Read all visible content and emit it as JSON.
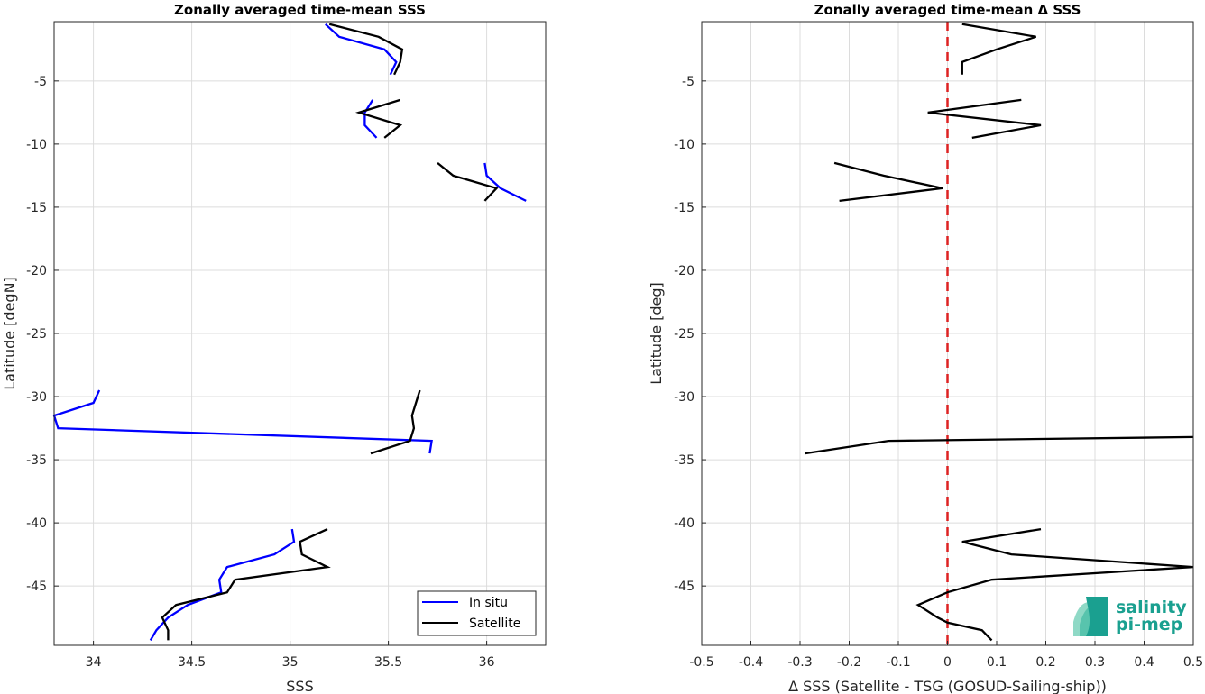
{
  "chart_data": [
    {
      "type": "line",
      "title": "Zonally averaged time-mean SSS",
      "xlabel": "SSS",
      "ylabel": "Latitude [degN]",
      "xlim": [
        33.8,
        36.3
      ],
      "ylim": [
        -49.7,
        -0.3
      ],
      "xticks": [
        34,
        34.5,
        35,
        35.5,
        36
      ],
      "xtick_labels": [
        "34",
        "34.5",
        "35",
        "35.5",
        "36"
      ],
      "yticks": [
        -5,
        -10,
        -15,
        -20,
        -25,
        -30,
        -35,
        -40,
        -45
      ],
      "ytick_labels": [
        "-5",
        "-10",
        "-15",
        "-20",
        "-25",
        "-30",
        "-35",
        "-40",
        "-45"
      ],
      "grid": true,
      "legend": {
        "placement": "bottom-right",
        "entries": [
          {
            "label": "In situ",
            "color": "#0000ff"
          },
          {
            "label": "Satellite",
            "color": "#000000"
          }
        ]
      },
      "series": [
        {
          "name": "In situ",
          "color": "#0000ff",
          "segments": [
            [
              [
                35.18,
                -0.5
              ],
              [
                35.25,
                -1.5
              ],
              [
                35.48,
                -2.5
              ],
              [
                35.54,
                -3.5
              ],
              [
                35.51,
                -4.5
              ]
            ],
            [
              [
                35.42,
                -6.5
              ],
              [
                35.38,
                -7.5
              ],
              [
                35.38,
                -8.5
              ],
              [
                35.44,
                -9.5
              ]
            ],
            [
              [
                35.99,
                -11.5
              ],
              [
                36.0,
                -12.5
              ],
              [
                36.07,
                -13.5
              ],
              [
                36.2,
                -14.5
              ]
            ],
            [
              [
                34.03,
                -29.5
              ],
              [
                34.0,
                -30.5
              ],
              [
                33.8,
                -31.5
              ],
              [
                33.82,
                -32.5
              ],
              [
                35.72,
                -33.5
              ],
              [
                35.71,
                -34.5
              ]
            ],
            [
              [
                35.01,
                -40.5
              ],
              [
                35.02,
                -41.5
              ],
              [
                34.92,
                -42.5
              ],
              [
                34.68,
                -43.5
              ],
              [
                34.64,
                -44.5
              ],
              [
                34.65,
                -45.5
              ],
              [
                34.48,
                -46.5
              ],
              [
                34.38,
                -47.5
              ],
              [
                34.32,
                -48.5
              ],
              [
                34.29,
                -49.3
              ]
            ]
          ]
        },
        {
          "name": "Satellite",
          "color": "#000000",
          "segments": [
            [
              [
                35.2,
                -0.5
              ],
              [
                35.45,
                -1.5
              ],
              [
                35.57,
                -2.5
              ],
              [
                35.56,
                -3.5
              ],
              [
                35.53,
                -4.5
              ]
            ],
            [
              [
                35.56,
                -6.5
              ],
              [
                35.35,
                -7.5
              ],
              [
                35.56,
                -8.5
              ],
              [
                35.48,
                -9.5
              ]
            ],
            [
              [
                35.75,
                -11.5
              ],
              [
                35.83,
                -12.5
              ],
              [
                36.05,
                -13.5
              ],
              [
                35.99,
                -14.5
              ]
            ],
            [
              [
                35.66,
                -29.5
              ],
              [
                35.62,
                -31.5
              ],
              [
                35.63,
                -32.5
              ],
              [
                35.61,
                -33.5
              ],
              [
                35.41,
                -34.5
              ]
            ],
            [
              [
                35.19,
                -40.5
              ],
              [
                35.05,
                -41.5
              ],
              [
                35.06,
                -42.5
              ],
              [
                35.19,
                -43.5
              ],
              [
                34.72,
                -44.5
              ],
              [
                34.68,
                -45.5
              ],
              [
                34.42,
                -46.5
              ],
              [
                34.35,
                -47.5
              ],
              [
                34.38,
                -48.5
              ],
              [
                34.38,
                -49.3
              ]
            ]
          ]
        }
      ]
    },
    {
      "type": "line",
      "title": "Zonally averaged time-mean Δ SSS",
      "xlabel": "Δ SSS (Satellite - TSG (GOSUD-Sailing-ship))",
      "ylabel": "Latitude [deg]",
      "xlim": [
        -0.5,
        0.5
      ],
      "ylim": [
        -49.7,
        -0.3
      ],
      "xticks": [
        -0.5,
        -0.4,
        -0.3,
        -0.2,
        -0.1,
        0,
        0.1,
        0.2,
        0.3,
        0.4,
        0.5
      ],
      "xtick_labels": [
        "-0.5",
        "-0.4",
        "-0.3",
        "-0.2",
        "-0.1",
        "0",
        "0.1",
        "0.2",
        "0.3",
        "0.4",
        "0.5"
      ],
      "yticks": [
        -5,
        -10,
        -15,
        -20,
        -25,
        -30,
        -35,
        -40,
        -45
      ],
      "ytick_labels": [
        "-5",
        "-10",
        "-15",
        "-20",
        "-25",
        "-30",
        "-35",
        "-40",
        "-45"
      ],
      "grid": true,
      "reference_line": {
        "x": 0,
        "color": "#dd2222",
        "style": "dashed"
      },
      "series": [
        {
          "color": "#000000",
          "segments": [
            [
              [
                0.03,
                -0.5
              ],
              [
                0.18,
                -1.5
              ],
              [
                0.1,
                -2.5
              ],
              [
                0.03,
                -3.5
              ],
              [
                0.03,
                -4.5
              ]
            ],
            [
              [
                0.15,
                -6.5
              ],
              [
                -0.04,
                -7.5
              ],
              [
                0.19,
                -8.5
              ],
              [
                0.05,
                -9.5
              ]
            ],
            [
              [
                -0.23,
                -11.5
              ],
              [
                -0.13,
                -12.5
              ],
              [
                -0.01,
                -13.5
              ],
              [
                -0.22,
                -14.5
              ]
            ],
            [
              [
                -0.29,
                -34.5
              ],
              [
                -0.12,
                -33.5
              ],
              [
                0.5,
                -33.2
              ]
            ],
            [
              [
                0.19,
                -40.5
              ],
              [
                0.03,
                -41.5
              ],
              [
                0.13,
                -42.5
              ],
              [
                0.5,
                -43.5
              ],
              [
                0.09,
                -44.5
              ],
              [
                0.0,
                -45.5
              ],
              [
                -0.06,
                -46.5
              ],
              [
                -0.02,
                -47.5
              ],
              [
                0.0,
                -47.9
              ],
              [
                0.07,
                -48.5
              ],
              [
                0.09,
                -49.3
              ]
            ]
          ]
        }
      ]
    }
  ],
  "logo": {
    "line1": "salinity",
    "line2": "pi-mep",
    "color": "#1aa090"
  }
}
